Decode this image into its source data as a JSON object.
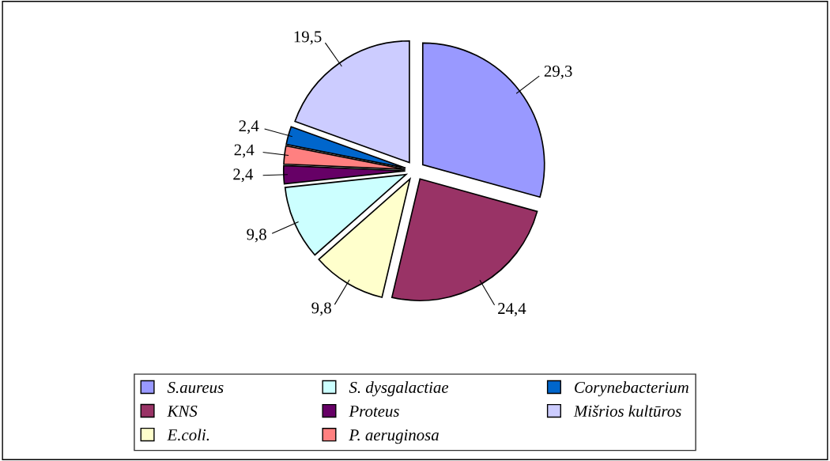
{
  "chart_data": {
    "type": "pie",
    "categories": [
      "S.aureus",
      "KNS",
      "E.coli.",
      "S. dysgalactiae",
      "Proteus",
      "P. aeruginosa",
      "Corynebacterium",
      "Mišrios kultūros"
    ],
    "values": [
      29.3,
      24.4,
      9.8,
      9.8,
      2.4,
      2.4,
      2.4,
      19.5
    ],
    "value_labels": [
      "29,3",
      "24,4",
      "9,8",
      "9,8",
      "2,4",
      "2,4",
      "2,4",
      "19,5"
    ],
    "colors": [
      "#9999ff",
      "#993366",
      "#ffffcc",
      "#ccffff",
      "#660066",
      "#ff8080",
      "#0066cc",
      "#ccccff"
    ],
    "legend": "bottom"
  }
}
